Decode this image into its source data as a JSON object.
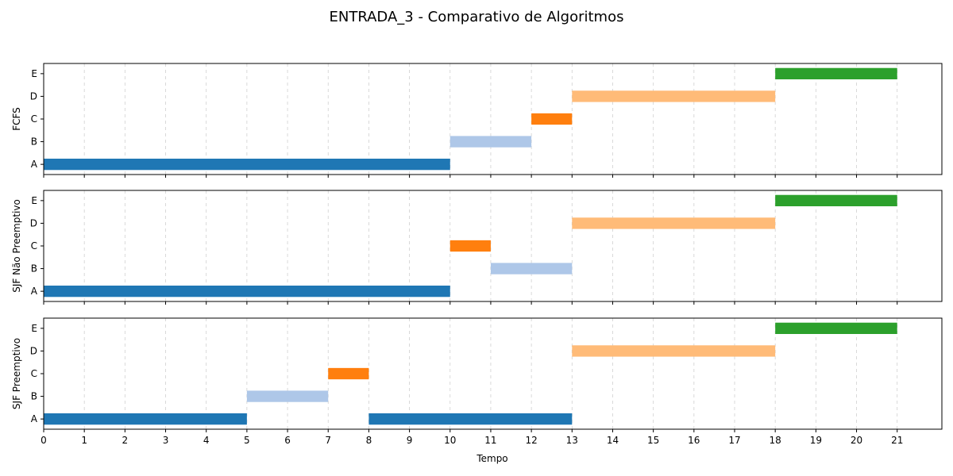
{
  "chart_data": {
    "type": "gantt",
    "title": "ENTRADA_3 - Comparativo de Algoritmos",
    "xlabel": "Tempo",
    "x_ticks": [
      0,
      1,
      2,
      3,
      4,
      5,
      6,
      7,
      8,
      9,
      10,
      11,
      12,
      13,
      14,
      15,
      16,
      17,
      18,
      19,
      20,
      21
    ],
    "xlim": [
      0,
      22.1
    ],
    "grid": "vertical dashed",
    "processes": [
      "A",
      "B",
      "C",
      "D",
      "E"
    ],
    "process_colors": {
      "A": "#1f77b4",
      "B": "#aec7e8",
      "C": "#ff7f0e",
      "D": "#ffbb78",
      "E": "#2ca02c"
    },
    "panels": [
      {
        "ylabel": "FCFS",
        "segments": [
          {
            "process": "A",
            "start": 0,
            "end": 10
          },
          {
            "process": "B",
            "start": 10,
            "end": 12
          },
          {
            "process": "C",
            "start": 12,
            "end": 13
          },
          {
            "process": "D",
            "start": 13,
            "end": 18
          },
          {
            "process": "E",
            "start": 18,
            "end": 21
          }
        ]
      },
      {
        "ylabel": "SJF Não Preemptivo",
        "segments": [
          {
            "process": "A",
            "start": 0,
            "end": 10
          },
          {
            "process": "C",
            "start": 10,
            "end": 11
          },
          {
            "process": "B",
            "start": 11,
            "end": 13
          },
          {
            "process": "D",
            "start": 13,
            "end": 18
          },
          {
            "process": "E",
            "start": 18,
            "end": 21
          }
        ]
      },
      {
        "ylabel": "SJF Preemptivo",
        "segments": [
          {
            "process": "A",
            "start": 0,
            "end": 5
          },
          {
            "process": "B",
            "start": 5,
            "end": 7
          },
          {
            "process": "C",
            "start": 7,
            "end": 8
          },
          {
            "process": "A",
            "start": 8,
            "end": 13
          },
          {
            "process": "D",
            "start": 13,
            "end": 18
          },
          {
            "process": "E",
            "start": 18,
            "end": 21
          }
        ]
      }
    ]
  }
}
